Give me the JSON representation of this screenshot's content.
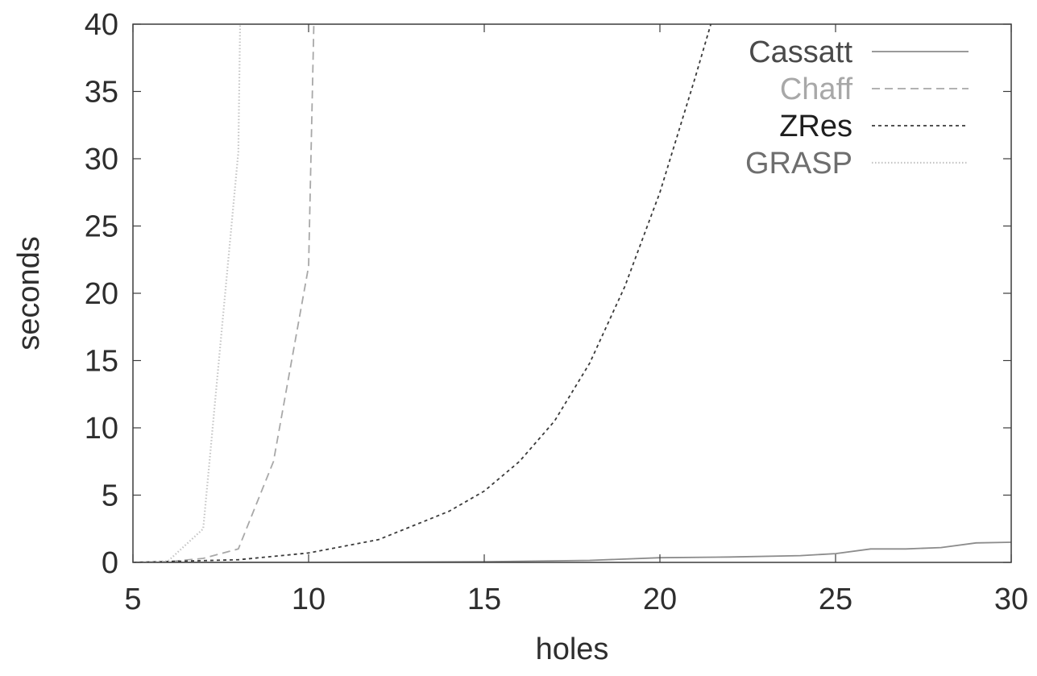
{
  "chart_data": {
    "type": "line",
    "title": "",
    "xlabel": "holes",
    "ylabel": "seconds",
    "xlim": [
      5,
      30
    ],
    "ylim": [
      0,
      40
    ],
    "xticks": [
      5,
      10,
      15,
      20,
      25,
      30
    ],
    "yticks": [
      0,
      5,
      10,
      15,
      20,
      25,
      30,
      35,
      40
    ],
    "grid": false,
    "legend_position": "top-right",
    "series": [
      {
        "name": "Cassatt",
        "color": "#8c8c8c",
        "dash": "solid",
        "x": [
          5,
          10,
          15,
          18,
          20,
          22,
          24,
          25,
          26,
          27,
          28,
          29,
          30
        ],
        "y": [
          0,
          0,
          0.05,
          0.15,
          0.35,
          0.4,
          0.5,
          0.65,
          1.0,
          1.0,
          1.1,
          1.45,
          1.5
        ]
      },
      {
        "name": "Chaff",
        "color": "#a8a8a8",
        "dash": "long",
        "x": [
          5,
          6,
          7,
          8,
          9,
          10,
          10.15
        ],
        "y": [
          0,
          0.05,
          0.3,
          1.0,
          7.5,
          22,
          40
        ]
      },
      {
        "name": "ZRes",
        "color": "#3a3a3a",
        "dash": "short",
        "x": [
          5,
          8,
          10,
          12,
          14,
          15,
          16,
          17,
          18,
          19,
          20,
          21,
          21.45
        ],
        "y": [
          0,
          0.2,
          0.7,
          1.7,
          3.8,
          5.3,
          7.5,
          10.5,
          14.8,
          20.5,
          27.5,
          36,
          40
        ]
      },
      {
        "name": "GRASP",
        "color": "#c4c4c4",
        "dash": "dotted",
        "x": [
          5,
          6,
          7,
          8,
          8.05
        ],
        "y": [
          0,
          0.1,
          2.5,
          30.5,
          40
        ]
      }
    ]
  }
}
